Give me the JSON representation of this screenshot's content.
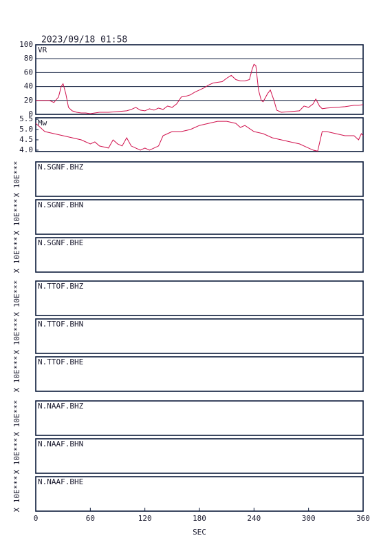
{
  "title": "2023/09/18 01:58",
  "x_axis": {
    "xlim": [
      0,
      360
    ],
    "xticks": [
      0,
      60,
      120,
      180,
      240,
      300,
      360
    ],
    "label": "SEC"
  },
  "chart_data": [
    {
      "type": "line",
      "label": "VR",
      "color": "#d0104c",
      "grid": true,
      "ylim": [
        0,
        100
      ],
      "yticks": [
        0,
        20,
        40,
        60,
        80,
        100
      ],
      "x": [
        0,
        15,
        20,
        25,
        28,
        30,
        33,
        36,
        40,
        45,
        50,
        55,
        60,
        65,
        70,
        80,
        90,
        100,
        105,
        110,
        115,
        120,
        125,
        130,
        135,
        140,
        145,
        150,
        155,
        160,
        165,
        170,
        175,
        180,
        185,
        190,
        195,
        200,
        205,
        210,
        215,
        220,
        225,
        230,
        235,
        238,
        240,
        242,
        245,
        248,
        250,
        255,
        258,
        262,
        265,
        270,
        280,
        290,
        295,
        300,
        305,
        308,
        312,
        315,
        320,
        330,
        340,
        350,
        355,
        360
      ],
      "values": [
        20,
        20,
        17,
        25,
        40,
        44,
        30,
        10,
        5,
        3,
        2,
        2,
        1,
        2,
        3,
        3,
        4,
        5,
        7,
        10,
        6,
        5,
        8,
        6,
        9,
        7,
        12,
        10,
        15,
        25,
        26,
        28,
        32,
        35,
        38,
        42,
        45,
        46,
        47,
        52,
        56,
        50,
        48,
        48,
        50,
        65,
        72,
        70,
        35,
        20,
        18,
        30,
        35,
        20,
        6,
        3,
        4,
        5,
        12,
        10,
        15,
        22,
        12,
        8,
        9,
        10,
        11,
        13,
        13,
        14
      ]
    },
    {
      "type": "line",
      "label": "Mw",
      "color": "#d0104c",
      "grid": false,
      "ylim": [
        3.93,
        5.57
      ],
      "yticks": [
        {
          "value": 4,
          "label": "4.0"
        },
        4.5,
        {
          "value": 5,
          "label": "5.0"
        },
        5.5
      ],
      "x": [
        0,
        5,
        10,
        20,
        30,
        40,
        50,
        55,
        60,
        65,
        70,
        80,
        85,
        90,
        95,
        100,
        105,
        110,
        115,
        120,
        125,
        130,
        135,
        140,
        145,
        150,
        160,
        170,
        175,
        180,
        190,
        200,
        210,
        220,
        225,
        230,
        240,
        250,
        260,
        270,
        280,
        290,
        300,
        305,
        310,
        315,
        320,
        330,
        340,
        350,
        355,
        358,
        360
      ],
      "values": [
        5.3,
        5.1,
        4.9,
        4.8,
        4.7,
        4.6,
        4.5,
        4.4,
        4.3,
        4.4,
        4.2,
        4.1,
        4.5,
        4.3,
        4.2,
        4.6,
        4.2,
        4.1,
        4.0,
        4.1,
        4.0,
        4.1,
        4.2,
        4.7,
        4.8,
        4.9,
        4.9,
        5.0,
        5.1,
        5.2,
        5.3,
        5.4,
        5.4,
        5.3,
        5.1,
        5.2,
        4.9,
        4.8,
        4.6,
        4.5,
        4.4,
        4.3,
        4.1,
        4.0,
        3.95,
        4.9,
        4.9,
        4.8,
        4.7,
        4.7,
        4.5,
        4.8,
        4.7
      ]
    },
    {
      "type": "waveform",
      "label": "N.SGNF.BHZ",
      "ylabel": "X 10E***"
    },
    {
      "type": "waveform",
      "label": "N.SGNF.BHN",
      "ylabel": "X 10E***"
    },
    {
      "type": "waveform",
      "label": "N.SGNF.BHE",
      "ylabel": "X 10E***"
    },
    {
      "type": "waveform",
      "label": "N.TTOF.BHZ",
      "ylabel": "X 10E***"
    },
    {
      "type": "waveform",
      "label": "N.TTOF.BHN",
      "ylabel": "X 10E***"
    },
    {
      "type": "waveform",
      "label": "N.TTOF.BHE",
      "ylabel": "X 10E***"
    },
    {
      "type": "waveform",
      "label": "N.NAAF.BHZ",
      "ylabel": "X 10E***"
    },
    {
      "type": "waveform",
      "label": "N.NAAF.BHN",
      "ylabel": "X 10E***"
    },
    {
      "type": "waveform",
      "label": "N.NAAF.BHE",
      "ylabel": "X 10E***"
    }
  ]
}
